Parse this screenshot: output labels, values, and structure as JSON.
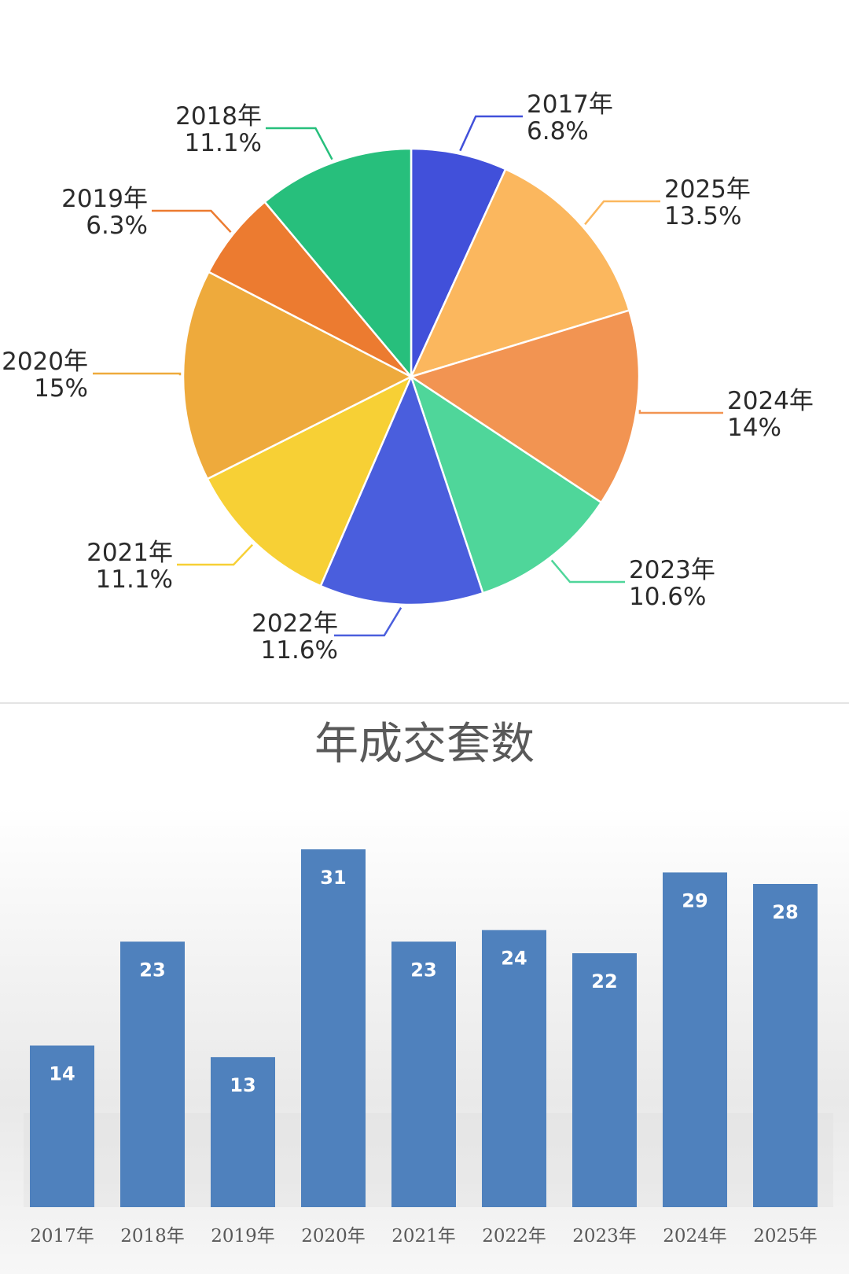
{
  "chart_data": [
    {
      "type": "pie",
      "title": "",
      "slices": [
        {
          "label": "2017年",
          "value": 6.8,
          "value_label": "6.8%",
          "color": "#4150da"
        },
        {
          "label": "2025年",
          "value": 13.5,
          "value_label": "13.5%",
          "color": "#fbb75e"
        },
        {
          "label": "2024年",
          "value": 14,
          "value_label": "14%",
          "color": "#f29452"
        },
        {
          "label": "2023年",
          "value": 10.6,
          "value_label": "10.6%",
          "color": "#4fd69a"
        },
        {
          "label": "2022年",
          "value": 11.6,
          "value_label": "11.6%",
          "color": "#4a5edd"
        },
        {
          "label": "2021年",
          "value": 11.1,
          "value_label": "11.1%",
          "color": "#f7d035"
        },
        {
          "label": "2020年",
          "value": 15,
          "value_label": "15%",
          "color": "#eeaa3c"
        },
        {
          "label": "2019年",
          "value": 6.3,
          "value_label": "6.3%",
          "color": "#ec7b30"
        },
        {
          "label": "2018年",
          "value": 11.1,
          "value_label": "11.1%",
          "color": "#27bf7c"
        }
      ],
      "start": "top",
      "direction": "clockwise"
    },
    {
      "type": "bar",
      "title": "年成交套数",
      "categories": [
        "2017年",
        "2018年",
        "2019年",
        "2020年",
        "2021年",
        "2022年",
        "2023年",
        "2024年",
        "2025年"
      ],
      "values": [
        14,
        23,
        13,
        31,
        23,
        24,
        22,
        29,
        28
      ],
      "ylim": [
        0,
        31
      ],
      "bar_color": "#4f81bd",
      "data_labels": true,
      "grid": false
    }
  ]
}
